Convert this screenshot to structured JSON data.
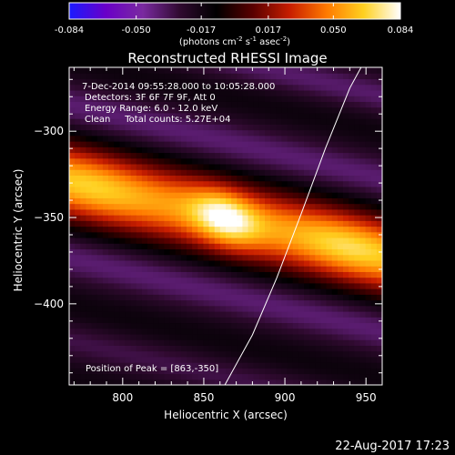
{
  "chart_data": [
    {
      "type": "colorbar",
      "range": [
        -0.084,
        0.084
      ],
      "ticks": [
        "-0.084",
        "-0.050",
        "-0.017",
        "0.017",
        "0.050",
        "0.084"
      ],
      "tick_values": [
        -0.084,
        -0.05,
        -0.017,
        0.017,
        0.05,
        0.084
      ],
      "units_parts": [
        "(photons cm",
        "-2",
        " s",
        "-1",
        " asec",
        "-2",
        ")"
      ],
      "colors": [
        "#1a1aff",
        "#6a00c8",
        "#7a2aa0",
        "#300a30",
        "#000000",
        "#5a0000",
        "#c81e00",
        "#ff7a00",
        "#ffd020",
        "#ffffff"
      ]
    },
    {
      "type": "heatmap",
      "title": "Reconstructed RHESSI Image",
      "xlabel": "Heliocentric X (arcsec)",
      "ylabel": "Heliocentric Y (arcsec)",
      "xlim": [
        767,
        960
      ],
      "ylim": [
        -447,
        -263
      ],
      "xticks": [
        800,
        850,
        900,
        950
      ],
      "yticks": [
        -300,
        -350,
        -400
      ],
      "info_lines": [
        "7-Dec-2014 09:55:28.000 to 10:05:28.000",
        "Detectors: 3F 6F 7F 9F, Att 0",
        "Energy Range: 6.0 - 12.0 keV",
        "Clean     Total counts: 5.27E+04"
      ],
      "peak_label": "Position of Peak = [863,-350]",
      "peak": [
        863,
        -350
      ],
      "limb_line": [
        [
          863,
          -447
        ],
        [
          880,
          -418
        ],
        [
          895,
          -385
        ],
        [
          910,
          -348
        ],
        [
          925,
          -310
        ],
        [
          940,
          -275
        ],
        [
          947,
          -263
        ]
      ]
    }
  ],
  "footer": {
    "date": "22-Aug-2017 17:23"
  }
}
